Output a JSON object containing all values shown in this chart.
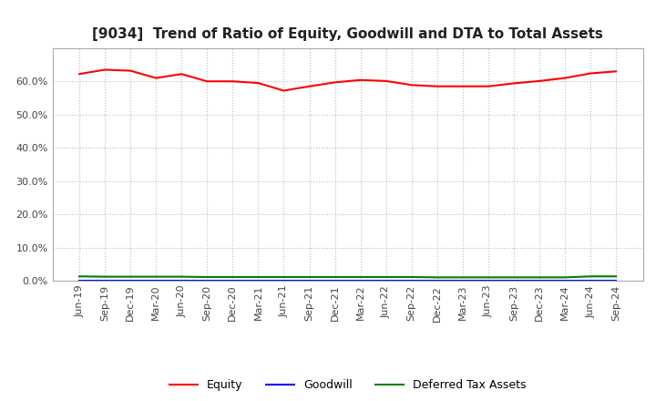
{
  "title": "[9034]  Trend of Ratio of Equity, Goodwill and DTA to Total Assets",
  "x_labels": [
    "Jun-19",
    "Sep-19",
    "Dec-19",
    "Mar-20",
    "Jun-20",
    "Sep-20",
    "Dec-20",
    "Mar-21",
    "Jun-21",
    "Sep-21",
    "Dec-21",
    "Mar-22",
    "Jun-22",
    "Sep-22",
    "Dec-22",
    "Mar-23",
    "Jun-23",
    "Sep-23",
    "Dec-23",
    "Mar-24",
    "Jun-24",
    "Sep-24"
  ],
  "equity": [
    0.622,
    0.635,
    0.632,
    0.61,
    0.622,
    0.6,
    0.6,
    0.595,
    0.572,
    0.585,
    0.597,
    0.604,
    0.601,
    0.589,
    0.585,
    0.585,
    0.585,
    0.594,
    0.601,
    0.61,
    0.624,
    0.63
  ],
  "goodwill": [
    0.0,
    0.0,
    0.0,
    0.0,
    0.0,
    0.0,
    0.0,
    0.0,
    0.0,
    0.0,
    0.0,
    0.0,
    0.0,
    0.0,
    0.0,
    0.0,
    0.0,
    0.0,
    0.0,
    0.0,
    0.0,
    0.0
  ],
  "dta": [
    0.013,
    0.012,
    0.012,
    0.012,
    0.012,
    0.011,
    0.011,
    0.011,
    0.011,
    0.011,
    0.011,
    0.011,
    0.011,
    0.011,
    0.01,
    0.01,
    0.01,
    0.01,
    0.01,
    0.01,
    0.013,
    0.013
  ],
  "equity_color": "#ff0000",
  "goodwill_color": "#0000ff",
  "dta_color": "#008000",
  "ylim": [
    0.0,
    0.7
  ],
  "yticks": [
    0.0,
    0.1,
    0.2,
    0.3,
    0.4,
    0.5,
    0.6
  ],
  "legend_labels": [
    "Equity",
    "Goodwill",
    "Deferred Tax Assets"
  ],
  "background_color": "#ffffff",
  "grid_color": "#bbbbbb",
  "title_fontsize": 11,
  "axis_fontsize": 8
}
